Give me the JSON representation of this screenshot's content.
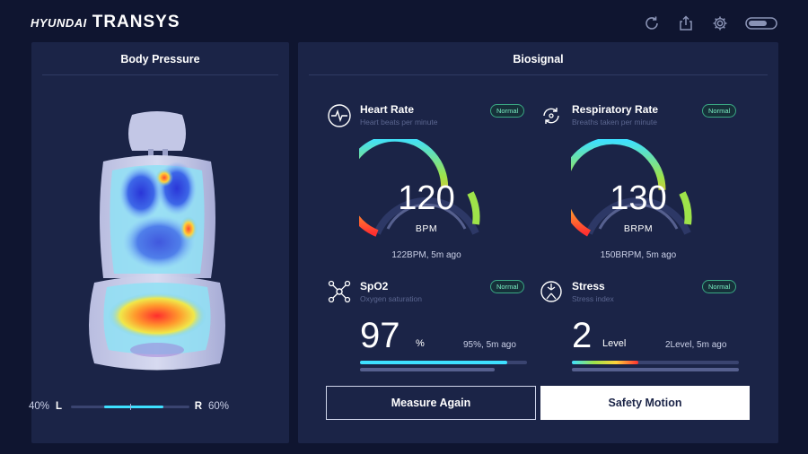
{
  "brand": {
    "part1": "HYUNDAI",
    "part2": "TRANSYS"
  },
  "top_icons": [
    "refresh-icon",
    "share-icon",
    "gear-icon",
    "battery-icon"
  ],
  "body_pressure": {
    "title": "Body Pressure",
    "left_pct": "40%",
    "left_label": "L",
    "right_label": "R",
    "right_pct": "60%",
    "left_ratio": 0.4
  },
  "biosignal": {
    "title": "Biosignal",
    "heart_rate": {
      "title": "Heart Rate",
      "subtitle": "Heart beats per minute",
      "status": "Normal",
      "value": "120",
      "unit": "BPM",
      "ago": "122BPM, 5m ago",
      "level": 0.62
    },
    "respiratory_rate": {
      "title": "Respiratory Rate",
      "subtitle": "Breaths taken per minute",
      "status": "Normal",
      "value": "130",
      "unit": "BRPM",
      "ago": "150BRPM, 5m ago",
      "level": 0.66
    },
    "spo2": {
      "title": "SpO2",
      "subtitle": "Oxygen saturation",
      "status": "Normal",
      "value": "97",
      "unit": "%",
      "ago": "95%, 5m ago",
      "level": 0.88
    },
    "stress": {
      "title": "Stress",
      "subtitle": "Stress index",
      "status": "Normal",
      "value": "2",
      "unit": "Level",
      "ago": "2Level, 5m ago",
      "level": 0.4
    }
  },
  "buttons": {
    "measure_again": "Measure Again",
    "safety_motion": "Safety Motion"
  },
  "colors": {
    "background": "#0f1530",
    "panel": "#1b2447",
    "accent_cyan": "#3ee0ff",
    "badge_green": "#7bf0c4"
  }
}
